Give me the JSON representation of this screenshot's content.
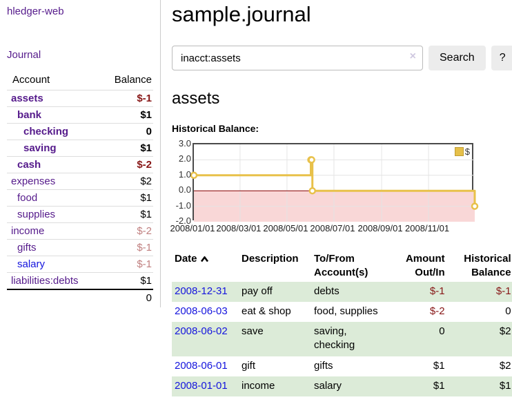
{
  "brand": "hledger-web",
  "sidebar": {
    "journal_link": "Journal",
    "accounts_table": {
      "headers": [
        "Account",
        "Balance"
      ],
      "rows": [
        {
          "name": "assets",
          "balance": "$-1",
          "level": 1,
          "bold": true,
          "name_style": "purple",
          "balance_style": "neg"
        },
        {
          "name": "bank",
          "balance": "$1",
          "level": 2,
          "bold": true,
          "name_style": "purple",
          "balance_style": "pos"
        },
        {
          "name": "checking",
          "balance": "0",
          "level": 3,
          "bold": true,
          "name_style": "purple",
          "balance_style": "pos"
        },
        {
          "name": "saving",
          "balance": "$1",
          "level": 3,
          "bold": true,
          "name_style": "purple",
          "balance_style": "pos"
        },
        {
          "name": "cash",
          "balance": "$-2",
          "level": 2,
          "bold": true,
          "name_style": "purple",
          "balance_style": "neg"
        },
        {
          "name": "expenses",
          "balance": "$2",
          "level": 1,
          "bold": false,
          "name_style": "purple",
          "balance_style": "pos"
        },
        {
          "name": "food",
          "balance": "$1",
          "level": 2,
          "bold": false,
          "name_style": "purple",
          "balance_style": "pos"
        },
        {
          "name": "supplies",
          "balance": "$1",
          "level": 2,
          "bold": false,
          "name_style": "purple",
          "balance_style": "pos"
        },
        {
          "name": "income",
          "balance": "$-2",
          "level": 1,
          "bold": false,
          "name_style": "purple",
          "balance_style": "neg-soft"
        },
        {
          "name": "gifts",
          "balance": "$-1",
          "level": 2,
          "bold": false,
          "name_style": "purple",
          "balance_style": "neg-soft"
        },
        {
          "name": "salary",
          "balance": "$-1",
          "level": 2,
          "bold": false,
          "name_style": "blue",
          "balance_style": "neg-soft"
        },
        {
          "name": "liabilities:debts",
          "balance": "$1",
          "level": 1,
          "bold": false,
          "name_style": "purple",
          "balance_style": "pos"
        }
      ],
      "total": "0"
    }
  },
  "main": {
    "title": "sample.journal",
    "search": {
      "value": "inacct:assets",
      "clear_icon": "×",
      "search_button": "Search",
      "help_button": "?"
    },
    "account_heading": "assets",
    "section_label": "Historical Balance:"
  },
  "chart_data": {
    "type": "line",
    "step": true,
    "title": "Historical Balance:",
    "series": [
      {
        "name": "$",
        "color": "#e8c14a",
        "points": [
          [
            "2008/01/01",
            1
          ],
          [
            "2008/06/01",
            2
          ],
          [
            "2008/06/02",
            2
          ],
          [
            "2008/06/03",
            0
          ],
          [
            "2008/12/31",
            -1
          ]
        ]
      }
    ],
    "x_range": [
      "2008/01/01",
      "2008/12/31"
    ],
    "ylim": [
      -2,
      3
    ],
    "y_ticks": [
      {
        "label": "3.0",
        "value": 3
      },
      {
        "label": "2.0",
        "value": 2
      },
      {
        "label": "1.0",
        "value": 1
      },
      {
        "label": "0.0",
        "value": 0
      },
      {
        "label": "-1.0",
        "value": -1
      },
      {
        "label": "-2.0",
        "value": -2
      }
    ],
    "x_ticks": [
      "2008/01/01",
      "2008/03/01",
      "2008/05/01",
      "2008/07/01",
      "2008/09/01",
      "2008/11/01"
    ],
    "legend": "$",
    "legend_position": "top-right",
    "grid": true,
    "negative_fill": "#f9d7d7",
    "zero_line_color": "#8b0000"
  },
  "register": {
    "headers": {
      "date": "Date",
      "date_sort": "ascending",
      "description": "Description",
      "accounts": "To/From Account(s)",
      "amount": "Amount Out/In",
      "balance": "Historical Balance"
    },
    "rows": [
      {
        "date": "2008-12-31",
        "description": "pay off",
        "accounts": "debts",
        "amount": "$-1",
        "amount_neg": true,
        "balance": "$-1",
        "balance_neg": true
      },
      {
        "date": "2008-06-03",
        "description": "eat & shop",
        "accounts": "food, supplies",
        "amount": "$-2",
        "amount_neg": true,
        "balance": "0",
        "balance_neg": false
      },
      {
        "date": "2008-06-02",
        "description": "save",
        "accounts": "saving, checking",
        "amount": "0",
        "amount_neg": false,
        "balance": "$2",
        "balance_neg": false
      },
      {
        "date": "2008-06-01",
        "description": "gift",
        "accounts": "gifts",
        "amount": "$1",
        "amount_neg": false,
        "balance": "$2",
        "balance_neg": false
      },
      {
        "date": "2008-01-01",
        "description": "income",
        "accounts": "salary",
        "amount": "$1",
        "amount_neg": false,
        "balance": "$1",
        "balance_neg": false
      }
    ]
  },
  "colors": {
    "link_purple": "#551a8b",
    "link_blue": "#1414dd",
    "negative_strong": "#871616",
    "negative_soft": "#c07f7f",
    "row_stripe_green": "#dcebd8",
    "chart_line_yellow": "#e8c14a"
  }
}
